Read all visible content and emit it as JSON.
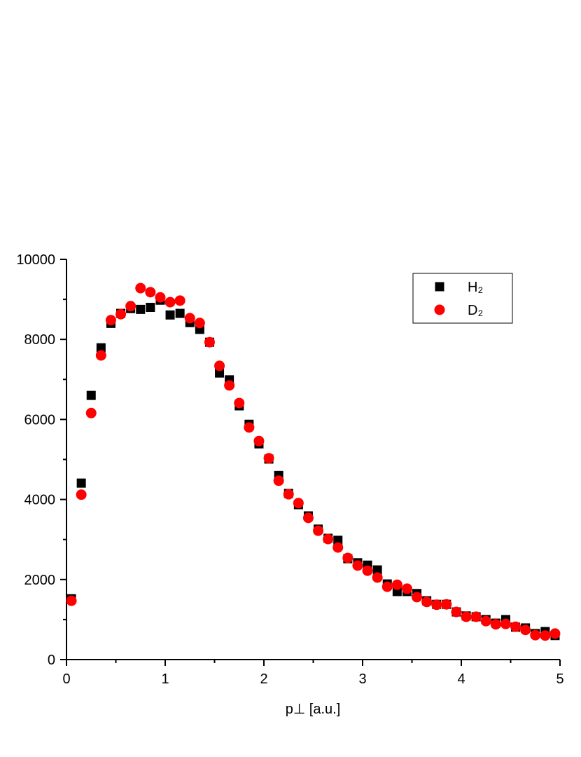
{
  "chart_data": {
    "type": "scatter",
    "x_label": "p⊥ [a.u.]",
    "x": [
      0.05,
      0.15,
      0.25,
      0.35,
      0.45,
      0.55,
      0.65,
      0.75,
      0.85,
      0.95,
      1.05,
      1.15,
      1.25,
      1.35,
      1.45,
      1.55,
      1.65,
      1.75,
      1.85,
      1.95,
      2.05,
      2.15,
      2.25,
      2.35,
      2.45,
      2.55,
      2.65,
      2.75,
      2.85,
      2.95,
      3.05,
      3.15,
      3.25,
      3.35,
      3.45,
      3.55,
      3.65,
      3.75,
      3.85,
      3.95,
      4.05,
      4.15,
      4.25,
      4.35,
      4.45,
      4.55,
      4.65,
      4.75,
      4.85,
      4.95
    ],
    "series": [
      {
        "name": "H₂",
        "color": "#000000",
        "marker": "square",
        "values": [
          1520,
          4410,
          6600,
          7790,
          8400,
          8650,
          8770,
          8750,
          8800,
          8980,
          8610,
          8650,
          8420,
          8250,
          7930,
          7160,
          6990,
          6340,
          5880,
          5390,
          5010,
          4600,
          4150,
          3870,
          3590,
          3260,
          3030,
          2980,
          2520,
          2420,
          2360,
          2240,
          1890,
          1700,
          1700,
          1650,
          1470,
          1380,
          1380,
          1190,
          1090,
          1070,
          1000,
          910,
          1000,
          810,
          790,
          650,
          700,
          600
        ]
      },
      {
        "name": "D₂",
        "color": "#ff0000",
        "marker": "circle",
        "values": [
          1470,
          4120,
          6160,
          7600,
          8480,
          8630,
          8830,
          9280,
          9180,
          9050,
          8930,
          8970,
          8530,
          8410,
          7930,
          7340,
          6850,
          6410,
          5800,
          5460,
          5030,
          4470,
          4130,
          3910,
          3540,
          3220,
          3010,
          2800,
          2540,
          2350,
          2220,
          2050,
          1820,
          1870,
          1770,
          1560,
          1440,
          1370,
          1380,
          1190,
          1070,
          1070,
          960,
          880,
          890,
          820,
          740,
          610,
          600,
          650
        ]
      }
    ],
    "xlim": [
      0,
      5
    ],
    "xticks": [
      0,
      1,
      2,
      3,
      4,
      5
    ],
    "ylim": [
      0,
      10000
    ],
    "yticks": [
      0,
      2000,
      4000,
      6000,
      8000,
      10000
    ],
    "grid": false,
    "legend": "top-right"
  }
}
